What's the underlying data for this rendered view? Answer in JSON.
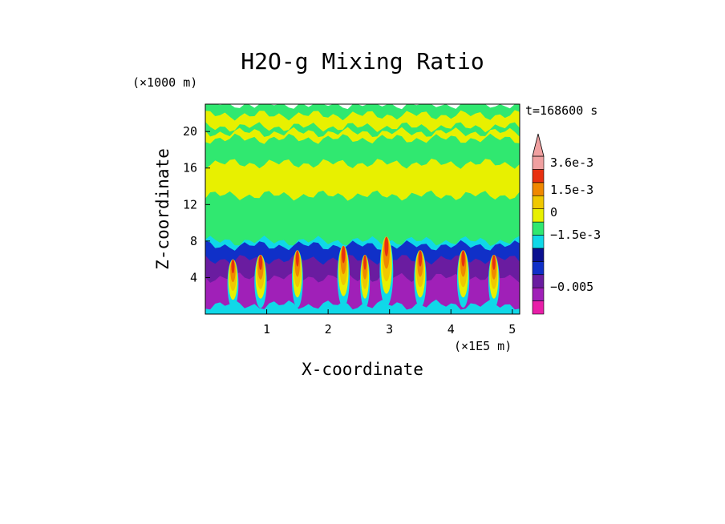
{
  "chart_data": {
    "type": "heatmap",
    "title": "H2O-g Mixing Ratio",
    "xlabel": "X-coordinate",
    "ylabel": "Z-coordinate",
    "x_unit": "(×1E5 m)",
    "y_unit": "(×1000 m)",
    "time_label": "t=168600 s",
    "x_ticks": [
      "1",
      "2",
      "3",
      "4",
      "5"
    ],
    "y_ticks": [
      "4",
      "8",
      "12",
      "16",
      "20"
    ],
    "xlim": [
      0.0,
      5.12
    ],
    "ylim": [
      0.0,
      23.0
    ],
    "colorbar": {
      "tick_labels": [
        "3.6e-3",
        "1.5e-3",
        "0",
        "−1.5e-3",
        "−0.005"
      ],
      "colors": [
        "#e81ea8",
        "#a020b8",
        "#6a1ca0",
        "#1030c8",
        "#0a1090",
        "#10d8e8",
        "#30e870",
        "#e8f000",
        "#f0c800",
        "#f08800",
        "#e83010",
        "#f0a0a0"
      ]
    },
    "layers": [
      {
        "z_top": 23.0,
        "color": "#30e870"
      },
      {
        "z_top": 21.8,
        "color": "#e8f000"
      },
      {
        "z_top": 20.5,
        "color": "#30e870"
      },
      {
        "z_top": 19.9,
        "color": "#e8f000"
      },
      {
        "z_top": 19.2,
        "color": "#30e870"
      },
      {
        "z_top": 16.5,
        "color": "#e8f000"
      },
      {
        "z_top": 13.0,
        "color": "#30e870"
      },
      {
        "z_top": 8.0,
        "color": "#10d8e8"
      },
      {
        "z_top": 7.5,
        "color": "#1030c8"
      },
      {
        "z_top": 6.0,
        "color": "#6a1ca0"
      },
      {
        "z_top": 4.0,
        "color": "#a020b8"
      },
      {
        "z_top": 1.0,
        "color": "#10d8e8"
      }
    ],
    "plumes": [
      {
        "x": 0.45,
        "z_top": 6.0,
        "width": 0.18
      },
      {
        "x": 0.9,
        "z_top": 6.5,
        "width": 0.2
      },
      {
        "x": 1.5,
        "z_top": 7.0,
        "width": 0.18
      },
      {
        "x": 2.25,
        "z_top": 7.5,
        "width": 0.2
      },
      {
        "x": 2.6,
        "z_top": 6.5,
        "width": 0.16
      },
      {
        "x": 2.95,
        "z_top": 8.5,
        "width": 0.22
      },
      {
        "x": 3.5,
        "z_top": 7.0,
        "width": 0.2
      },
      {
        "x": 4.2,
        "z_top": 7.0,
        "width": 0.2
      },
      {
        "x": 4.7,
        "z_top": 6.5,
        "width": 0.18
      }
    ]
  }
}
